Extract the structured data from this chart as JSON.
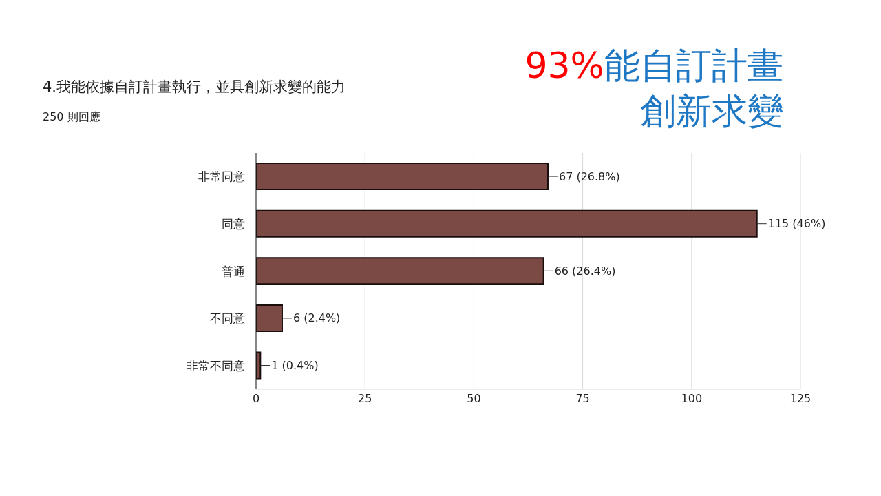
{
  "chart_data": {
    "type": "bar",
    "orientation": "horizontal",
    "title": "4.我能依據自訂計畫執行，並具創新求變的能力",
    "subtitle": "250 則回應",
    "annotations": [
      "93%",
      "能自訂計畫",
      "創新求變"
    ],
    "categories": [
      "非常同意",
      "同意",
      "普通",
      "不同意",
      "非常不同意"
    ],
    "values": [
      67,
      115,
      66,
      6,
      1
    ],
    "value_labels": [
      "67 (26.8%)",
      "115 (46%)",
      "66 (26.4%)",
      "6 (2.4%)",
      "1 (0.4%)"
    ],
    "color": "#7b4a45",
    "xlim": [
      0,
      125
    ],
    "xticks": [
      0,
      25,
      50,
      75,
      100,
      125
    ],
    "grid": "x"
  }
}
